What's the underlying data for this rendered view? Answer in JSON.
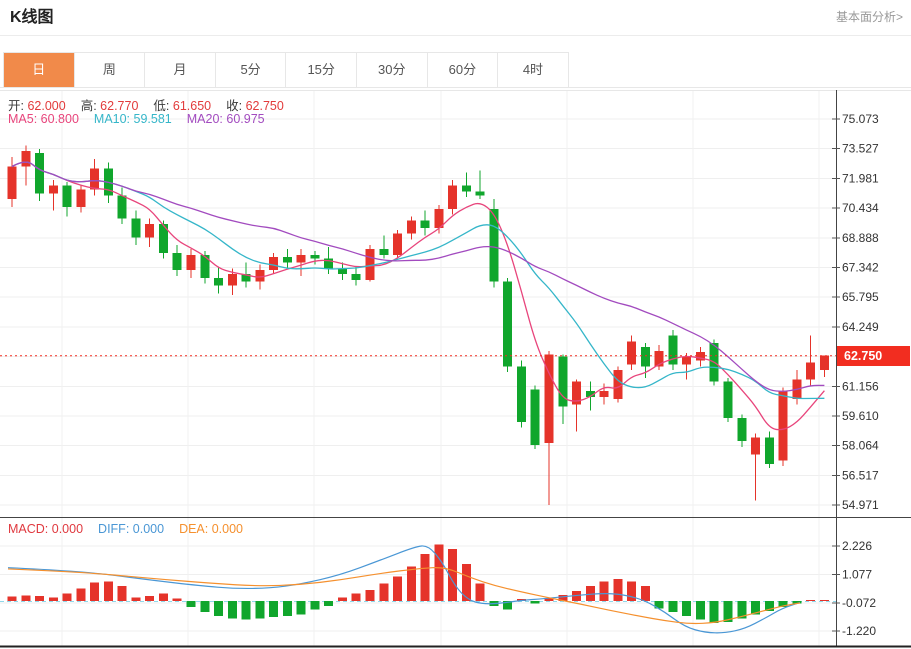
{
  "page": {
    "title": "K线图",
    "analysis_link": "基本面分析>"
  },
  "tabs": {
    "items": [
      "日",
      "周",
      "月",
      "5分",
      "15分",
      "30分",
      "60分",
      "4时"
    ],
    "selected_index": 0
  },
  "info_bar": {
    "ohlc": [
      {
        "label": "开:",
        "value": "62.000"
      },
      {
        "label": "高:",
        "value": "62.770"
      },
      {
        "label": "低:",
        "value": "61.650"
      },
      {
        "label": "收:",
        "value": "62.750"
      }
    ],
    "ma": [
      {
        "label": "MA5:",
        "value": "60.800",
        "color": "#e8457c"
      },
      {
        "label": "MA10:",
        "value": "59.581",
        "color": "#35b6c9"
      },
      {
        "label": "MA20:",
        "value": "60.975",
        "color": "#a24bbf"
      }
    ]
  },
  "macd_bar": {
    "items": [
      {
        "label": "MACD:",
        "value": "0.000",
        "color": "#e0393f"
      },
      {
        "label": "DIFF:",
        "value": "0.000",
        "color": "#4a97d5"
      },
      {
        "label": "DEA:",
        "value": "0.000",
        "color": "#f5902e"
      }
    ]
  },
  "current_price": "62.750",
  "colors": {
    "up": "#e5332a",
    "down": "#10a62c",
    "ma5": "#e8457c",
    "ma10": "#35b6c9",
    "ma20": "#a24bbf",
    "accent": "#f18a4a",
    "price_line": "#f22d20",
    "badge_bg": "#f22d20",
    "diff_line": "#4a97d5",
    "dea_line": "#f5902e",
    "zero_dash": "#8fd8ea",
    "grid": "#efefef",
    "vgrid": "#f1f1f1",
    "frame_dark": "#444",
    "tick_text": "#333"
  },
  "chart_data": {
    "type": "candlestick_with_macd",
    "title": "K线图",
    "price_axis": {
      "tick_labels": [
        "75.073",
        "73.527",
        "71.981",
        "70.434",
        "68.888",
        "67.342",
        "65.795",
        "64.249",
        "61.156",
        "59.610",
        "58.064",
        "56.517",
        "54.971"
      ],
      "unlabeled_grid": [
        62.703
      ],
      "min": 54.971,
      "max": 75.073,
      "current_price": 62.75
    },
    "candles_ohlc_note": "each candle is [open, high, low, close]; red = close>=open (up), green = down",
    "candles": [
      [
        70.9,
        73.1,
        70.5,
        72.6
      ],
      [
        72.6,
        73.7,
        71.6,
        73.4
      ],
      [
        73.3,
        73.5,
        70.8,
        71.2
      ],
      [
        71.2,
        71.9,
        70.3,
        71.6
      ],
      [
        71.6,
        71.8,
        70.0,
        70.5
      ],
      [
        70.5,
        71.6,
        70.2,
        71.4
      ],
      [
        71.4,
        73.0,
        71.1,
        72.5
      ],
      [
        72.5,
        72.8,
        70.7,
        71.1
      ],
      [
        71.1,
        71.5,
        69.6,
        69.9
      ],
      [
        69.9,
        70.3,
        68.5,
        68.9
      ],
      [
        68.9,
        69.9,
        68.4,
        69.6
      ],
      [
        69.6,
        69.8,
        67.8,
        68.1
      ],
      [
        68.1,
        68.5,
        66.9,
        67.2
      ],
      [
        67.2,
        68.3,
        66.8,
        68.0
      ],
      [
        68.0,
        68.2,
        66.5,
        66.8
      ],
      [
        66.8,
        67.4,
        66.0,
        66.4
      ],
      [
        66.4,
        67.3,
        65.9,
        67.0
      ],
      [
        67.0,
        67.6,
        66.3,
        66.6
      ],
      [
        66.6,
        67.5,
        66.2,
        67.2
      ],
      [
        67.2,
        68.1,
        67.0,
        67.9
      ],
      [
        67.9,
        68.3,
        67.3,
        67.6
      ],
      [
        67.6,
        68.3,
        66.9,
        68.0
      ],
      [
        68.0,
        68.2,
        67.5,
        67.8
      ],
      [
        67.8,
        68.4,
        67.0,
        67.3
      ],
      [
        67.3,
        67.6,
        66.7,
        67.0
      ],
      [
        67.0,
        67.4,
        66.4,
        66.7
      ],
      [
        66.7,
        68.5,
        66.6,
        68.3
      ],
      [
        68.3,
        69.0,
        67.8,
        68.0
      ],
      [
        68.0,
        69.3,
        67.8,
        69.1
      ],
      [
        69.1,
        70.0,
        68.8,
        69.8
      ],
      [
        69.8,
        70.3,
        69.0,
        69.4
      ],
      [
        69.4,
        70.6,
        69.1,
        70.4
      ],
      [
        70.4,
        71.9,
        70.1,
        71.6
      ],
      [
        71.6,
        72.3,
        71.0,
        71.3
      ],
      [
        71.3,
        72.4,
        70.9,
        71.1
      ],
      [
        70.4,
        70.9,
        66.3,
        66.6
      ],
      [
        66.6,
        66.8,
        61.9,
        62.2
      ],
      [
        62.2,
        62.5,
        59.0,
        59.3
      ],
      [
        61.0,
        61.2,
        57.9,
        58.1
      ],
      [
        58.2,
        63.0,
        54.97,
        62.8
      ],
      [
        62.7,
        62.8,
        59.2,
        60.1
      ],
      [
        60.2,
        61.5,
        58.8,
        61.4
      ],
      [
        60.9,
        61.4,
        59.9,
        60.6
      ],
      [
        60.6,
        61.3,
        60.2,
        60.9
      ],
      [
        60.5,
        62.2,
        60.3,
        62.0
      ],
      [
        62.3,
        63.8,
        62.0,
        63.5
      ],
      [
        63.2,
        63.4,
        61.6,
        62.2
      ],
      [
        62.2,
        63.3,
        62.0,
        63.0
      ],
      [
        63.8,
        64.1,
        62.0,
        62.3
      ],
      [
        62.3,
        62.9,
        61.5,
        62.7
      ],
      [
        62.5,
        63.2,
        62.2,
        62.95
      ],
      [
        63.4,
        63.6,
        61.2,
        61.4
      ],
      [
        61.4,
        61.6,
        59.3,
        59.5
      ],
      [
        59.5,
        59.7,
        58.0,
        58.3
      ],
      [
        57.6,
        58.7,
        55.2,
        58.5
      ],
      [
        58.5,
        58.8,
        56.9,
        57.1
      ],
      [
        57.3,
        61.1,
        57.0,
        60.9
      ],
      [
        60.5,
        62.0,
        60.2,
        61.5
      ],
      [
        61.5,
        63.8,
        61.2,
        62.4
      ],
      [
        62.0,
        62.77,
        61.65,
        62.75
      ]
    ],
    "ma_windows": [
      5,
      10,
      20
    ],
    "macd": {
      "tick_labels": [
        "2.226",
        "1.077",
        "-0.072",
        "-1.220"
      ],
      "histogram": [
        0.18,
        0.22,
        0.2,
        0.15,
        0.3,
        0.5,
        0.75,
        0.8,
        0.6,
        0.15,
        0.2,
        0.3,
        0.1,
        -0.25,
        -0.45,
        -0.6,
        -0.7,
        -0.75,
        -0.7,
        -0.65,
        -0.6,
        -0.55,
        -0.35,
        -0.2,
        0.15,
        0.3,
        0.45,
        0.7,
        1.0,
        1.4,
        1.9,
        2.3,
        2.1,
        1.5,
        0.7,
        -0.2,
        -0.35,
        0.08,
        -0.1,
        0.12,
        0.25,
        0.4,
        0.6,
        0.8,
        0.9,
        0.8,
        0.6,
        -0.3,
        -0.45,
        -0.6,
        -0.75,
        -0.9,
        -0.85,
        -0.7,
        -0.55,
        -0.4,
        -0.25,
        -0.1,
        0.04,
        0.03
      ],
      "diff": [
        [
          8,
          1.35
        ],
        [
          80,
          1.22
        ],
        [
          150,
          0.85
        ],
        [
          200,
          0.62
        ],
        [
          235,
          0.5
        ],
        [
          270,
          0.52
        ],
        [
          300,
          0.68
        ],
        [
          340,
          1.05
        ],
        [
          380,
          1.65
        ],
        [
          415,
          2.2
        ],
        [
          428,
          2.26
        ],
        [
          442,
          1.6
        ],
        [
          455,
          0.6
        ],
        [
          468,
          0.05
        ],
        [
          482,
          -0.12
        ],
        [
          500,
          -0.1
        ],
        [
          520,
          0.02
        ],
        [
          545,
          0.1
        ],
        [
          575,
          0.22
        ],
        [
          605,
          0.32
        ],
        [
          625,
          0.25
        ],
        [
          645,
          0.02
        ],
        [
          665,
          -0.45
        ],
        [
          685,
          -1.05
        ],
        [
          705,
          -1.28
        ],
        [
          725,
          -1.3
        ],
        [
          745,
          -1.12
        ],
        [
          765,
          -0.7
        ],
        [
          782,
          -0.3
        ],
        [
          800,
          -0.06
        ]
      ],
      "dea": [
        [
          8,
          1.3
        ],
        [
          80,
          1.18
        ],
        [
          150,
          0.92
        ],
        [
          210,
          0.72
        ],
        [
          260,
          0.6
        ],
        [
          300,
          0.66
        ],
        [
          340,
          0.85
        ],
        [
          380,
          1.12
        ],
        [
          420,
          1.32
        ],
        [
          445,
          1.38
        ],
        [
          470,
          0.95
        ],
        [
          495,
          0.62
        ],
        [
          520,
          0.38
        ],
        [
          550,
          0.12
        ],
        [
          580,
          -0.12
        ],
        [
          610,
          -0.38
        ],
        [
          640,
          -0.62
        ],
        [
          665,
          -0.8
        ],
        [
          690,
          -0.93
        ],
        [
          715,
          -0.88
        ],
        [
          740,
          -0.65
        ],
        [
          765,
          -0.38
        ],
        [
          785,
          -0.18
        ],
        [
          800,
          -0.08
        ]
      ],
      "zero_value": 0.0
    }
  }
}
